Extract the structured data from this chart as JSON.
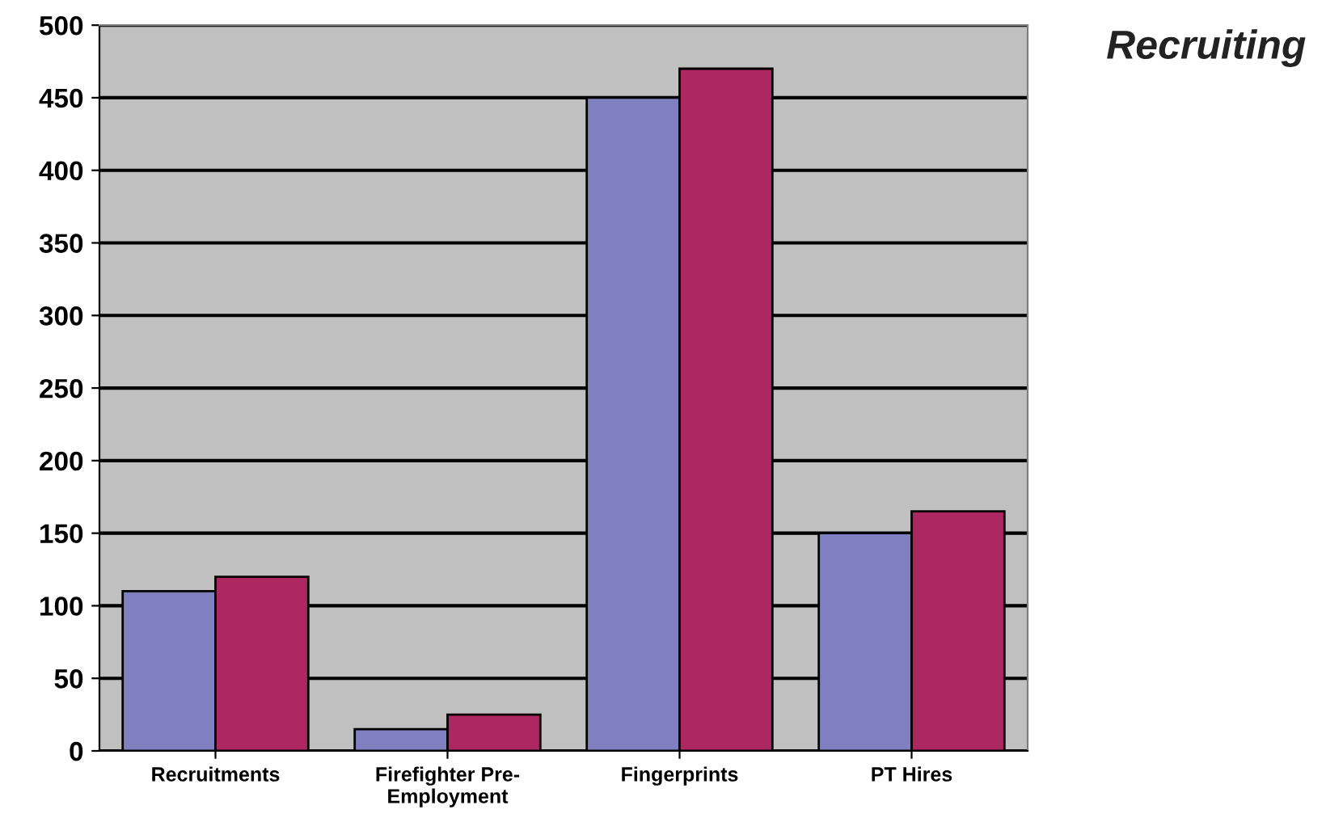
{
  "chart_data": {
    "type": "bar",
    "title": "Recruiting",
    "categories": [
      "Recruitments",
      "Firefighter Pre-\nEmployment",
      "Fingerprints",
      "PT Hires"
    ],
    "series": [
      {
        "color": "#8080c0",
        "values": [
          110,
          15,
          450,
          150
        ]
      },
      {
        "color": "#ad2760",
        "values": [
          120,
          25,
          470,
          165
        ]
      }
    ],
    "ylim": [
      0,
      500
    ],
    "yticks": [
      0,
      50,
      100,
      150,
      200,
      250,
      300,
      350,
      400,
      450,
      500
    ],
    "grid": "y"
  }
}
